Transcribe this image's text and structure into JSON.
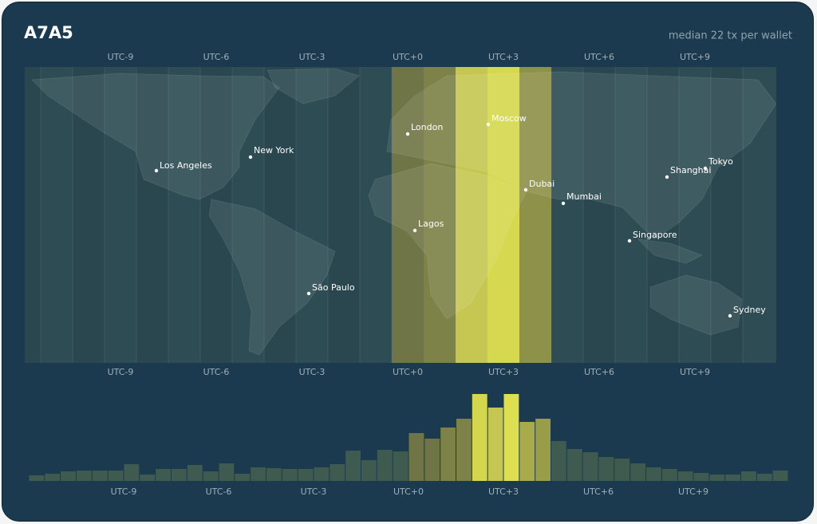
{
  "header": {
    "title": "A7A5",
    "subtitle": "median 22 tx per wallet"
  },
  "chart_data": [
    {
      "type": "map",
      "xlim": [
        -12,
        11.5
      ],
      "xticks": [
        {
          "value": -9,
          "label": "UTC-9"
        },
        {
          "value": -6,
          "label": "UTC-6"
        },
        {
          "value": -3,
          "label": "UTC-3"
        },
        {
          "value": 0,
          "label": "UTC+0"
        },
        {
          "value": 3,
          "label": "UTC+3"
        },
        {
          "value": 6,
          "label": "UTC+6"
        },
        {
          "value": 9,
          "label": "UTC+9"
        }
      ],
      "highlights": [
        {
          "zone": 0,
          "color": "#6f7546"
        },
        {
          "zone": 1,
          "color": "#7d8248"
        },
        {
          "zone": 2,
          "color": "#c5c752"
        },
        {
          "zone": 3,
          "color": "#d6d84f"
        },
        {
          "zone": 4,
          "color": "#8d9149"
        }
      ],
      "cities": [
        "Los Angeles",
        "New York",
        "São Paulo",
        "London",
        "Lagos",
        "Moscow",
        "Dubai",
        "Mumbai",
        "Singapore",
        "Shanghai",
        "Tokyo",
        "Sydney"
      ]
    },
    {
      "type": "bar",
      "xlim": [
        -12,
        12
      ],
      "xticks": [
        {
          "value": -9,
          "label": "UTC-9"
        },
        {
          "value": -6,
          "label": "UTC-6"
        },
        {
          "value": -3,
          "label": "UTC-3"
        },
        {
          "value": 0,
          "label": "UTC+0"
        },
        {
          "value": 3,
          "label": "UTC+3"
        },
        {
          "value": 6,
          "label": "UTC+6"
        },
        {
          "value": 9,
          "label": "UTC+9"
        }
      ],
      "x": [
        -12,
        -11.5,
        -11,
        -10.5,
        -10,
        -9.5,
        -9,
        -8.5,
        -8,
        -7.5,
        -7,
        -6.5,
        -6,
        -5.5,
        -5,
        -4.5,
        -4,
        -3.5,
        -3,
        -2.5,
        -2,
        -1.5,
        -1,
        -0.5,
        0,
        0.5,
        1,
        1.5,
        2,
        2.5,
        3,
        3.5,
        4,
        4.5,
        5,
        5.5,
        6,
        6.5,
        7,
        7.5,
        8,
        8.5,
        9,
        9.5,
        10,
        10.5,
        11,
        11.5
      ],
      "values": [
        7,
        9,
        12,
        13,
        13,
        13,
        21,
        8,
        15,
        15,
        20,
        12,
        22,
        9,
        17,
        16,
        15,
        15,
        17,
        21,
        38,
        26,
        39,
        37,
        60,
        53,
        67,
        78,
        109,
        92,
        109,
        74,
        78,
        50,
        40,
        36,
        30,
        28,
        22,
        17,
        15,
        12,
        10,
        8,
        8,
        12,
        9,
        13
      ],
      "colors": [
        "#3f5a4f",
        "#3f5a4f",
        "#3f5a4f",
        "#3f5a4f",
        "#3f5a4f",
        "#3f5a4f",
        "#3f5a4f",
        "#3f5a4f",
        "#3f5a4f",
        "#3f5a4f",
        "#3f5a4f",
        "#3f5a4f",
        "#3f5a4f",
        "#3f5a4f",
        "#3f5a4f",
        "#3f5a4f",
        "#3f5a4f",
        "#3f5a4f",
        "#3f5a4f",
        "#3f5a4f",
        "#3f5a4f",
        "#3f5a4f",
        "#3f5a4f",
        "#3f5a4f",
        "#6f7546",
        "#6f7546",
        "#7d8248",
        "#7d8248",
        "#d4d64d",
        "#c5c752",
        "#dedf50",
        "#a9ab4a",
        "#9a9d48",
        "#3f5a4f",
        "#3f5a4f",
        "#3f5a4f",
        "#3f5a4f",
        "#3f5a4f",
        "#3f5a4f",
        "#3f5a4f",
        "#3f5a4f",
        "#3f5a4f",
        "#3f5a4f",
        "#3f5a4f",
        "#3f5a4f",
        "#3f5a4f",
        "#3f5a4f",
        "#3f5a4f"
      ]
    }
  ]
}
